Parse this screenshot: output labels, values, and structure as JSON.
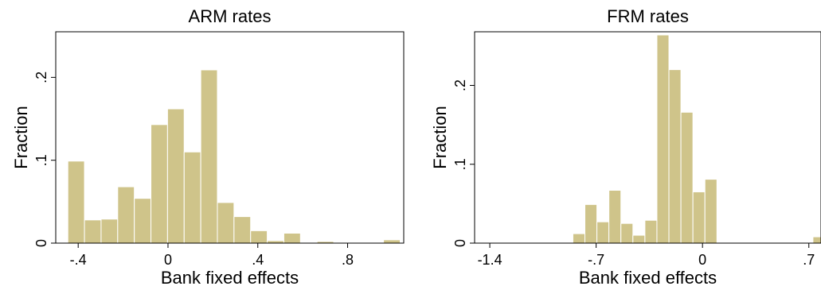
{
  "chart_data": [
    {
      "type": "bar",
      "title": "ARM rates",
      "xlabel": "Bank fixed effects",
      "ylabel": "Fraction",
      "xlim": [
        -0.5,
        1.05
      ],
      "ylim": [
        0,
        0.255
      ],
      "xticks": [
        -0.4,
        0,
        0.4,
        0.8
      ],
      "xtick_labels": [
        "-.4",
        "0",
        ".4",
        ".8"
      ],
      "yticks": [
        0,
        0.1,
        0.2
      ],
      "ytick_labels": [
        "0",
        ".1",
        ".2"
      ],
      "bin_width": 0.074,
      "bar_color": "#cfc48a",
      "bins": [
        {
          "x0": -0.446,
          "value": 0.099
        },
        {
          "x0": -0.372,
          "value": 0.028
        },
        {
          "x0": -0.298,
          "value": 0.029
        },
        {
          "x0": -0.224,
          "value": 0.068
        },
        {
          "x0": -0.15,
          "value": 0.054
        },
        {
          "x0": -0.076,
          "value": 0.143
        },
        {
          "x0": -0.002,
          "value": 0.162
        },
        {
          "x0": 0.072,
          "value": 0.11
        },
        {
          "x0": 0.146,
          "value": 0.209
        },
        {
          "x0": 0.22,
          "value": 0.049
        },
        {
          "x0": 0.294,
          "value": 0.032
        },
        {
          "x0": 0.368,
          "value": 0.015
        },
        {
          "x0": 0.442,
          "value": 0.003
        },
        {
          "x0": 0.516,
          "value": 0.012
        },
        {
          "x0": 0.59,
          "value": 0.0
        },
        {
          "x0": 0.664,
          "value": 0.002
        },
        {
          "x0": 0.738,
          "value": 0.0
        },
        {
          "x0": 0.812,
          "value": 0.0
        },
        {
          "x0": 0.886,
          "value": 0.0
        },
        {
          "x0": 0.96,
          "value": 0.004
        }
      ]
    },
    {
      "type": "bar",
      "title": "FRM rates",
      "xlabel": "Bank fixed effects",
      "ylabel": "Fraction",
      "xlim": [
        -1.5,
        0.78
      ],
      "ylim": [
        0,
        0.268
      ],
      "xticks": [
        -1.4,
        -0.7,
        0,
        0.7
      ],
      "xtick_labels": [
        "-1.4",
        "-.7",
        "0",
        ".7"
      ],
      "yticks": [
        0,
        0.1,
        0.2
      ],
      "ytick_labels": [
        "0",
        ".1",
        ".2"
      ],
      "bin_width": 0.079,
      "bar_color": "#cfc48a",
      "bins": [
        {
          "x0": -1.485,
          "value": 0.001
        },
        {
          "x0": -1.406,
          "value": 0.0
        },
        {
          "x0": -1.327,
          "value": 0.0
        },
        {
          "x0": -1.248,
          "value": 0.0
        },
        {
          "x0": -1.169,
          "value": 0.0
        },
        {
          "x0": -1.09,
          "value": 0.0
        },
        {
          "x0": -1.011,
          "value": 0.0
        },
        {
          "x0": -0.932,
          "value": 0.0
        },
        {
          "x0": -0.853,
          "value": 0.012
        },
        {
          "x0": -0.774,
          "value": 0.049
        },
        {
          "x0": -0.695,
          "value": 0.027
        },
        {
          "x0": -0.616,
          "value": 0.067
        },
        {
          "x0": -0.537,
          "value": 0.025
        },
        {
          "x0": -0.458,
          "value": 0.01
        },
        {
          "x0": -0.379,
          "value": 0.029
        },
        {
          "x0": -0.3,
          "value": 0.264
        },
        {
          "x0": -0.221,
          "value": 0.22
        },
        {
          "x0": -0.142,
          "value": 0.166
        },
        {
          "x0": -0.063,
          "value": 0.065
        },
        {
          "x0": 0.016,
          "value": 0.081
        },
        {
          "x0": 0.095,
          "value": 0.0
        },
        {
          "x0": 0.174,
          "value": 0.0
        },
        {
          "x0": 0.253,
          "value": 0.0
        },
        {
          "x0": 0.332,
          "value": 0.0
        },
        {
          "x0": 0.411,
          "value": 0.0
        },
        {
          "x0": 0.49,
          "value": 0.0
        },
        {
          "x0": 0.569,
          "value": 0.0
        },
        {
          "x0": 0.648,
          "value": 0.0
        },
        {
          "x0": 0.727,
          "value": 0.008
        }
      ]
    }
  ]
}
